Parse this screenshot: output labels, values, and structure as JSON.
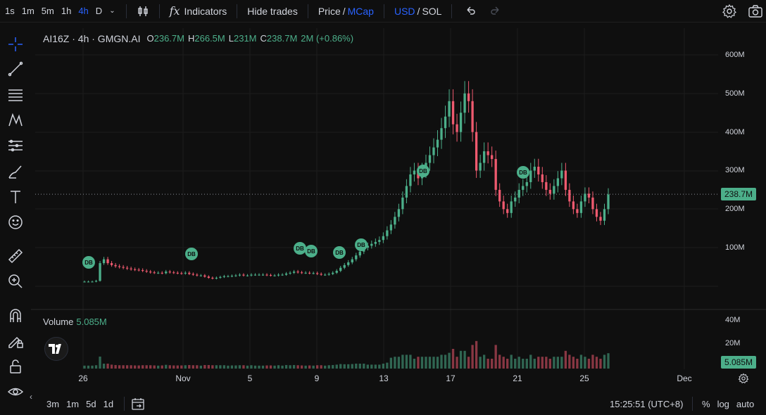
{
  "toolbar": {
    "timeframes": [
      "1s",
      "1m",
      "5m",
      "1h",
      "4h",
      "D"
    ],
    "active_timeframe": "4h",
    "indicators_label": "Indicators",
    "hide_trades_label": "Hide trades",
    "price_label": "Price",
    "slash": "/",
    "mcap_label": "MCap",
    "usd_label": "USD",
    "sol_label": "SOL"
  },
  "legend": {
    "symbol": "AI16Z · 4h · GMGN.AI",
    "o_key": "O",
    "o_val": "236.7M",
    "h_key": "H",
    "h_val": "266.5M",
    "l_key": "L",
    "l_val": "231M",
    "c_key": "C",
    "c_val": "238.7M",
    "change": "2M (+0.86%)"
  },
  "volume_legend": {
    "label": "Volume",
    "value": "5.085M"
  },
  "price_axis": {
    "labels": [
      "600M",
      "500M",
      "400M",
      "300M",
      "200M",
      "100M"
    ],
    "current": "238.7M"
  },
  "volume_axis": {
    "labels": [
      "40M",
      "20M"
    ],
    "current": "5.085M"
  },
  "time_axis": [
    "26",
    "Nov",
    "5",
    "9",
    "13",
    "17",
    "21",
    "25",
    "Dec"
  ],
  "markers": {
    "label": "DB",
    "count": 10
  },
  "bottombar": {
    "ranges": [
      "3m",
      "1m",
      "5d",
      "1d"
    ],
    "clock": "15:25:51 (UTC+8)",
    "percent": "%",
    "log": "log",
    "auto": "auto"
  },
  "colors": {
    "up": "#4caf8a",
    "down": "#ef5a6f",
    "accent": "#2962ff"
  },
  "chart_data": {
    "type": "candlestick",
    "title": "AI16Z · 4h · GMGN.AI",
    "ylim": [
      0,
      600000000
    ],
    "x_range": [
      "Oct 26",
      "Nov 25"
    ],
    "close": [
      12,
      12,
      12,
      14,
      60,
      70,
      60,
      55,
      52,
      50,
      48,
      46,
      44,
      43,
      42,
      40,
      38,
      36,
      35,
      35,
      34,
      38,
      36,
      35,
      34,
      33,
      35,
      32,
      30,
      28,
      28,
      25,
      22,
      20,
      22,
      24,
      26,
      26,
      27,
      28,
      30,
      28,
      28,
      30,
      30,
      30,
      30,
      29,
      28,
      28,
      30,
      30,
      33,
      35,
      38,
      36,
      35,
      35,
      34,
      34,
      32,
      30,
      30,
      32,
      35,
      40,
      48,
      55,
      62,
      70,
      80,
      90,
      100,
      105,
      110,
      115,
      120,
      130,
      145,
      160,
      180,
      200,
      230,
      260,
      290,
      300,
      280,
      300,
      320,
      340,
      360,
      380,
      410,
      440,
      480,
      420,
      400,
      450,
      500,
      480,
      400,
      300,
      320,
      350,
      340,
      330,
      250,
      220,
      200,
      190,
      220,
      230,
      250,
      260,
      270,
      300,
      310,
      290,
      270,
      250,
      240,
      260,
      280,
      300,
      250,
      220,
      200,
      190,
      220,
      240,
      230,
      200,
      180,
      170,
      200,
      238
    ]
  }
}
